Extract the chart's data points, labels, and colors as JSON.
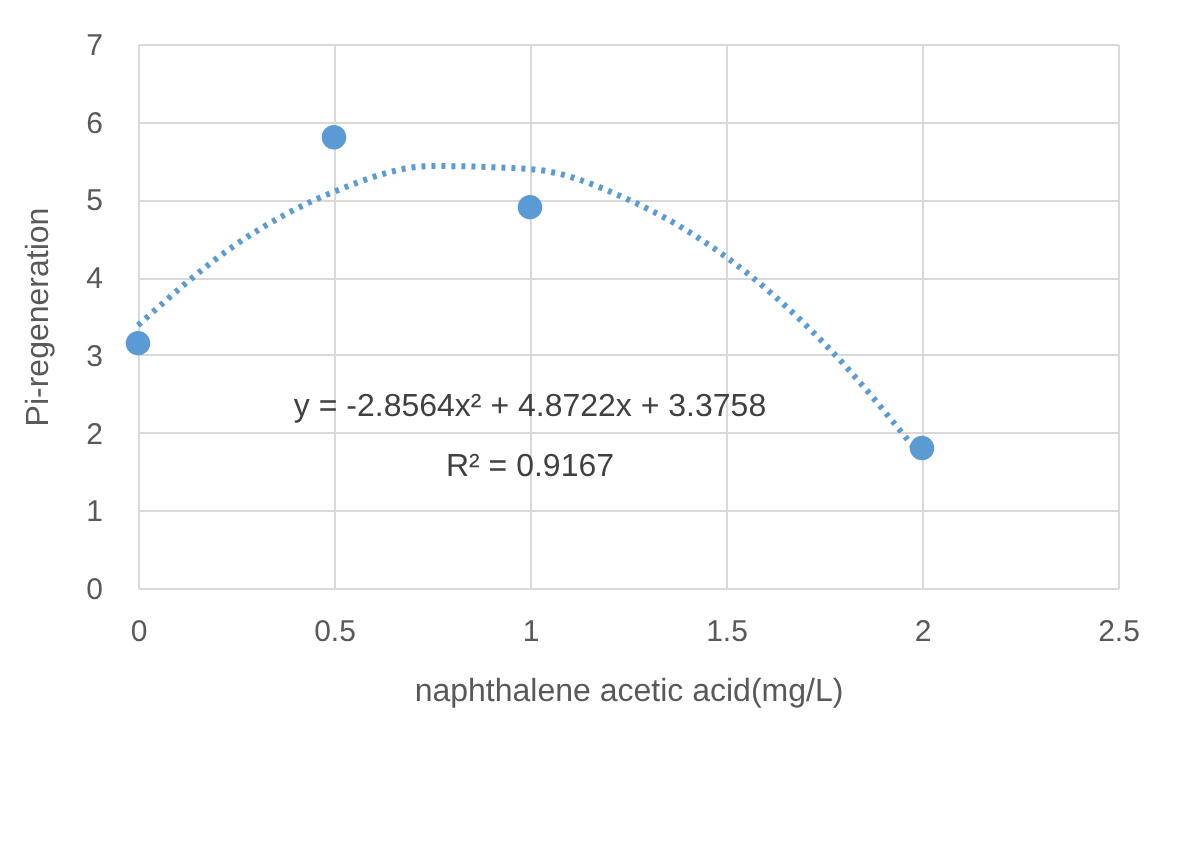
{
  "chart_data": {
    "type": "scatter",
    "xlabel": "naphthalene acetic acid(mg/L)",
    "ylabel": "Pi-regeneration",
    "series": [
      {
        "color": "#5b9bd5",
        "x": [
          0,
          0.5,
          1,
          2
        ],
        "values": [
          3.15,
          5.8,
          4.9,
          1.8
        ],
        "marker": "circle"
      },
      {
        "type": "line",
        "color": "#5b9bd5",
        "line_style": "dotted",
        "x": [
          0,
          0.25,
          0.5,
          0.75,
          1,
          1.25,
          1.5,
          1.75,
          2
        ],
        "values": [
          3.38,
          4.42,
          5.1,
          5.43,
          5.39,
          5.0,
          4.26,
          3.15,
          1.68
        ]
      }
    ],
    "annotations": [
      "y = -2.8564x² + 4.8722x + 3.3758",
      "R² = 0.9167"
    ],
    "xlim": [
      0,
      2.5
    ],
    "xticks": [
      0,
      0.5,
      1,
      1.5,
      2,
      2.5
    ],
    "ylim": [
      0,
      7
    ],
    "yticks": [
      0,
      1,
      2,
      3,
      4,
      5,
      6,
      7
    ],
    "grid": true
  }
}
